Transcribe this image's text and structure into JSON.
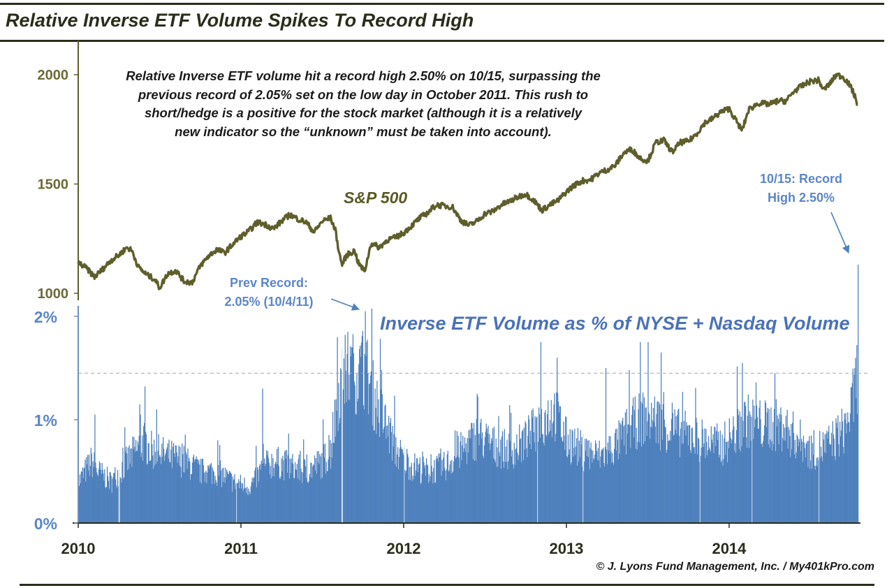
{
  "page": {
    "title": "Relative Inverse ETF Volume Spikes To Record High",
    "copyright": "© J. Lyons Fund Management, Inc. / My401kPro.com"
  },
  "annotations": {
    "main_lines": [
      "Relative Inverse ETF volume hit a record high 2.50% on 10/15, surpassing the",
      "previous record of 2.05% set on the low day in October 2011. This rush to",
      "short/hedge is a positive for the stock market (although it is a relatively",
      "new indicator so the “unknown” must be taken into account)."
    ],
    "sp_label": "S&P 500",
    "volume_label": "Inverse ETF Volume as % of NYSE + Nasdaq Volume",
    "prev_record_lines": [
      "Prev Record:",
      "2.05% (10/4/11)"
    ],
    "record_high_lines": [
      "10/15: Record",
      "High 2.50%"
    ]
  },
  "colors": {
    "sp_line": "#5e5e2c",
    "bars": "#4f81bd",
    "blue_text": "#5b86c8",
    "sp_axis_text": "#6b6b38",
    "pct_axis_text": "#5b86c8"
  },
  "chart_data": [
    {
      "type": "line",
      "name": "S&P 500",
      "ylim": [
        1000,
        2000
      ],
      "y_ticks": [
        "1000",
        "1500",
        "2000"
      ],
      "x_ticks": [
        "2010",
        "2011",
        "2012",
        "2013",
        "2014"
      ],
      "x_range": [
        2010.0,
        2014.79
      ],
      "points": [
        [
          2010.0,
          1140
        ],
        [
          2010.05,
          1115
        ],
        [
          2010.1,
          1075
        ],
        [
          2010.15,
          1110
        ],
        [
          2010.2,
          1150
        ],
        [
          2010.25,
          1175
        ],
        [
          2010.3,
          1210
        ],
        [
          2010.33,
          1195
        ],
        [
          2010.37,
          1120
        ],
        [
          2010.42,
          1085
        ],
        [
          2010.47,
          1065
        ],
        [
          2010.5,
          1025
        ],
        [
          2010.55,
          1090
        ],
        [
          2010.6,
          1105
        ],
        [
          2010.65,
          1055
        ],
        [
          2010.7,
          1050
        ],
        [
          2010.75,
          1125
        ],
        [
          2010.8,
          1170
        ],
        [
          2010.85,
          1200
        ],
        [
          2010.9,
          1185
        ],
        [
          2010.95,
          1225
        ],
        [
          2011.0,
          1260
        ],
        [
          2011.05,
          1285
        ],
        [
          2011.1,
          1325
        ],
        [
          2011.15,
          1315
        ],
        [
          2011.2,
          1295
        ],
        [
          2011.25,
          1330
        ],
        [
          2011.3,
          1360
        ],
        [
          2011.35,
          1340
        ],
        [
          2011.4,
          1325
        ],
        [
          2011.45,
          1280
        ],
        [
          2011.5,
          1330
        ],
        [
          2011.55,
          1345
        ],
        [
          2011.58,
          1290
        ],
        [
          2011.6,
          1200
        ],
        [
          2011.62,
          1130
        ],
        [
          2011.65,
          1175
        ],
        [
          2011.7,
          1195
        ],
        [
          2011.72,
          1140
        ],
        [
          2011.76,
          1100
        ],
        [
          2011.8,
          1230
        ],
        [
          2011.85,
          1210
        ],
        [
          2011.9,
          1245
        ],
        [
          2011.95,
          1255
        ],
        [
          2012.0,
          1277
        ],
        [
          2012.05,
          1310
        ],
        [
          2012.1,
          1345
        ],
        [
          2012.15,
          1370
        ],
        [
          2012.2,
          1405
        ],
        [
          2012.25,
          1400
        ],
        [
          2012.3,
          1395
        ],
        [
          2012.35,
          1335
        ],
        [
          2012.4,
          1310
        ],
        [
          2012.45,
          1330
        ],
        [
          2012.5,
          1365
        ],
        [
          2012.55,
          1375
        ],
        [
          2012.6,
          1405
        ],
        [
          2012.65,
          1420
        ],
        [
          2012.7,
          1440
        ],
        [
          2012.75,
          1455
        ],
        [
          2012.8,
          1425
        ],
        [
          2012.85,
          1380
        ],
        [
          2012.9,
          1405
        ],
        [
          2012.95,
          1425
        ],
        [
          2013.0,
          1465
        ],
        [
          2013.05,
          1495
        ],
        [
          2013.1,
          1515
        ],
        [
          2013.15,
          1520
        ],
        [
          2013.2,
          1550
        ],
        [
          2013.25,
          1565
        ],
        [
          2013.3,
          1585
        ],
        [
          2013.35,
          1640
        ],
        [
          2013.4,
          1660
        ],
        [
          2013.45,
          1620
        ],
        [
          2013.5,
          1605
        ],
        [
          2013.55,
          1690
        ],
        [
          2013.6,
          1700
        ],
        [
          2013.65,
          1645
        ],
        [
          2013.7,
          1690
        ],
        [
          2013.75,
          1695
        ],
        [
          2013.8,
          1730
        ],
        [
          2013.85,
          1780
        ],
        [
          2013.9,
          1800
        ],
        [
          2013.95,
          1830
        ],
        [
          2014.0,
          1845
        ],
        [
          2014.05,
          1780
        ],
        [
          2014.08,
          1745
        ],
        [
          2014.12,
          1840
        ],
        [
          2014.18,
          1870
        ],
        [
          2014.25,
          1865
        ],
        [
          2014.3,
          1880
        ],
        [
          2014.35,
          1880
        ],
        [
          2014.4,
          1925
        ],
        [
          2014.45,
          1950
        ],
        [
          2014.5,
          1970
        ],
        [
          2014.55,
          1975
        ],
        [
          2014.58,
          1930
        ],
        [
          2014.62,
          1960
        ],
        [
          2014.66,
          2000
        ],
        [
          2014.7,
          1990
        ],
        [
          2014.73,
          1965
        ],
        [
          2014.76,
          1925
        ],
        [
          2014.79,
          1865
        ]
      ]
    },
    {
      "type": "bar",
      "name": "Inverse ETF Volume as % of NYSE + Nasdaq Volume",
      "ylim": [
        0,
        2.5
      ],
      "y_ticks": [
        "0%",
        "1%",
        "2%"
      ],
      "reference_line": 1.45,
      "x_range": [
        2010.0,
        2014.79
      ],
      "profile": [
        [
          2010.0,
          0.4
        ],
        [
          2010.08,
          0.6
        ],
        [
          2010.12,
          0.5
        ],
        [
          2010.2,
          0.4
        ],
        [
          2010.3,
          0.6
        ],
        [
          2010.4,
          0.8
        ],
        [
          2010.45,
          0.7
        ],
        [
          2010.55,
          0.65
        ],
        [
          2010.65,
          0.6
        ],
        [
          2010.75,
          0.5
        ],
        [
          2010.85,
          0.5
        ],
        [
          2010.95,
          0.4
        ],
        [
          2011.05,
          0.35
        ],
        [
          2011.12,
          0.5
        ],
        [
          2011.2,
          0.6
        ],
        [
          2011.3,
          0.55
        ],
        [
          2011.4,
          0.5
        ],
        [
          2011.5,
          0.6
        ],
        [
          2011.55,
          0.7
        ],
        [
          2011.6,
          1.3
        ],
        [
          2011.65,
          1.5
        ],
        [
          2011.7,
          1.45
        ],
        [
          2011.76,
          1.5
        ],
        [
          2011.82,
          1.2
        ],
        [
          2011.9,
          0.9
        ],
        [
          2011.95,
          0.7
        ],
        [
          2012.05,
          0.55
        ],
        [
          2012.15,
          0.5
        ],
        [
          2012.25,
          0.55
        ],
        [
          2012.35,
          0.7
        ],
        [
          2012.45,
          0.85
        ],
        [
          2012.55,
          0.75
        ],
        [
          2012.65,
          0.7
        ],
        [
          2012.75,
          0.8
        ],
        [
          2012.85,
          1.0
        ],
        [
          2012.92,
          1.1
        ],
        [
          2013.0,
          0.8
        ],
        [
          2013.1,
          0.7
        ],
        [
          2013.2,
          0.65
        ],
        [
          2013.3,
          0.75
        ],
        [
          2013.4,
          0.95
        ],
        [
          2013.45,
          1.0
        ],
        [
          2013.5,
          1.05
        ],
        [
          2013.55,
          1.0
        ],
        [
          2013.65,
          0.9
        ],
        [
          2013.75,
          0.85
        ],
        [
          2013.85,
          0.8
        ],
        [
          2013.95,
          0.75
        ],
        [
          2014.05,
          0.9
        ],
        [
          2014.1,
          1.0
        ],
        [
          2014.2,
          0.95
        ],
        [
          2014.3,
          0.95
        ],
        [
          2014.4,
          0.85
        ],
        [
          2014.5,
          0.7
        ],
        [
          2014.6,
          0.75
        ],
        [
          2014.7,
          0.9
        ],
        [
          2014.75,
          1.1
        ],
        [
          2014.79,
          1.5
        ]
      ],
      "spikes": [
        [
          2010.1,
          1.05
        ],
        [
          2010.38,
          1.05
        ],
        [
          2010.48,
          1.1
        ],
        [
          2011.13,
          1.3
        ],
        [
          2011.59,
          1.8
        ],
        [
          2011.68,
          1.7
        ],
        [
          2011.76,
          2.05
        ],
        [
          2012.45,
          1.25
        ],
        [
          2012.84,
          1.75
        ],
        [
          2012.94,
          1.6
        ],
        [
          2013.24,
          1.5
        ],
        [
          2013.45,
          1.75
        ],
        [
          2013.5,
          1.75
        ],
        [
          2013.58,
          1.65
        ],
        [
          2014.08,
          1.55
        ],
        [
          2014.28,
          1.45
        ],
        [
          2014.77,
          1.5
        ],
        [
          2014.79,
          2.5
        ]
      ],
      "dips": [
        2010.25,
        2010.97,
        2011.62,
        2012.0,
        2012.82,
        2013.1,
        2013.82,
        2014.14,
        2014.55
      ],
      "annotations": [
        {
          "date": "10/4/11",
          "value": 2.05
        },
        {
          "date": "10/15",
          "value": 2.5
        }
      ]
    }
  ]
}
